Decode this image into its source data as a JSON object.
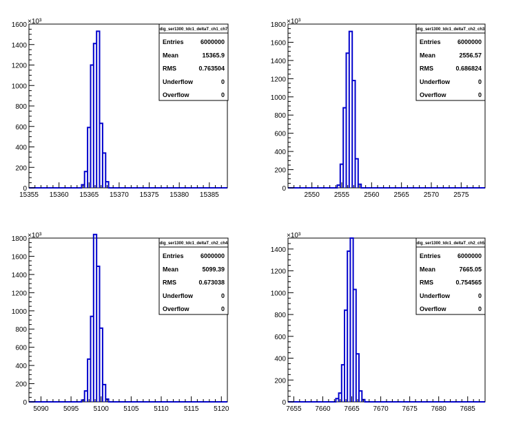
{
  "chart_data": [
    {
      "type": "histogram",
      "title": "dig_ser1300_tdc1_deltaT_ch1_ch7",
      "xlim": [
        15355,
        15388
      ],
      "ylim": [
        0,
        1600
      ],
      "y_multiplier": "×10³",
      "xticks": [
        15355,
        15360,
        15365,
        15370,
        15375,
        15380,
        15385
      ],
      "yticks": [
        0,
        200,
        400,
        600,
        800,
        1000,
        1200,
        1400,
        1600
      ],
      "bin_width": 0.5,
      "bins": [
        {
          "x": 15364.0,
          "y": 30
        },
        {
          "x": 15364.5,
          "y": 160
        },
        {
          "x": 15365.0,
          "y": 590
        },
        {
          "x": 15365.5,
          "y": 1200
        },
        {
          "x": 15366.0,
          "y": 1410
        },
        {
          "x": 15366.5,
          "y": 1530
        },
        {
          "x": 15367.0,
          "y": 630
        },
        {
          "x": 15367.5,
          "y": 340
        },
        {
          "x": 15368.0,
          "y": 60
        }
      ],
      "stats": [
        {
          "label": "Entries",
          "value": "6000000"
        },
        {
          "label": "Mean",
          "value": "15365.9"
        },
        {
          "label": "RMS",
          "value": "0.763504"
        },
        {
          "label": "Underflow",
          "value": "0"
        },
        {
          "label": "Overflow",
          "value": "0"
        }
      ]
    },
    {
      "type": "histogram",
      "title": "dig_ser1300_tdc1_deltaT_ch2_ch3",
      "xlim": [
        2546,
        2579
      ],
      "ylim": [
        0,
        1800
      ],
      "y_multiplier": "×10³",
      "xticks": [
        2550,
        2555,
        2560,
        2565,
        2570,
        2575
      ],
      "yticks": [
        0,
        200,
        400,
        600,
        800,
        1000,
        1200,
        1400,
        1600,
        1800
      ],
      "bin_width": 0.5,
      "bins": [
        {
          "x": 2554.5,
          "y": 30
        },
        {
          "x": 2555.0,
          "y": 260
        },
        {
          "x": 2555.5,
          "y": 880
        },
        {
          "x": 2556.0,
          "y": 1480
        },
        {
          "x": 2556.5,
          "y": 1720
        },
        {
          "x": 2557.0,
          "y": 1180
        },
        {
          "x": 2557.5,
          "y": 320
        },
        {
          "x": 2558.0,
          "y": 40
        }
      ],
      "stats": [
        {
          "label": "Entries",
          "value": "6000000"
        },
        {
          "label": "Mean",
          "value": "2556.57"
        },
        {
          "label": "RMS",
          "value": "0.686824"
        },
        {
          "label": "Underflow",
          "value": "0"
        },
        {
          "label": "Overflow",
          "value": "0"
        }
      ]
    },
    {
      "type": "histogram",
      "title": "dig_ser1300_tdc1_deltaT_ch2_ch4",
      "xlim": [
        5088,
        5121
      ],
      "ylim": [
        0,
        1800
      ],
      "y_multiplier": "×10³",
      "xticks": [
        5090,
        5095,
        5100,
        5105,
        5110,
        5115,
        5120
      ],
      "yticks": [
        0,
        200,
        400,
        600,
        800,
        1000,
        1200,
        1400,
        1600,
        1800
      ],
      "bin_width": 0.5,
      "bins": [
        {
          "x": 5097.0,
          "y": 20
        },
        {
          "x": 5097.5,
          "y": 120
        },
        {
          "x": 5098.0,
          "y": 470
        },
        {
          "x": 5098.5,
          "y": 940
        },
        {
          "x": 5099.0,
          "y": 1840
        },
        {
          "x": 5099.5,
          "y": 1490
        },
        {
          "x": 5100.0,
          "y": 810
        },
        {
          "x": 5100.5,
          "y": 190
        },
        {
          "x": 5101.0,
          "y": 30
        }
      ],
      "stats": [
        {
          "label": "Entries",
          "value": "6000000"
        },
        {
          "label": "Mean",
          "value": "5099.39"
        },
        {
          "label": "RMS",
          "value": "0.673038"
        },
        {
          "label": "Underflow",
          "value": "0"
        },
        {
          "label": "Overflow",
          "value": "0"
        }
      ]
    },
    {
      "type": "histogram",
      "title": "dig_ser1300_tdc1_deltaT_ch2_ch5",
      "xlim": [
        7654,
        7688
      ],
      "ylim": [
        0,
        1500
      ],
      "y_multiplier": "×10³",
      "xticks": [
        7655,
        7660,
        7665,
        7670,
        7675,
        7680,
        7685
      ],
      "yticks": [
        0,
        200,
        400,
        600,
        800,
        1000,
        1200,
        1400
      ],
      "bin_width": 0.5,
      "bins": [
        {
          "x": 7662.5,
          "y": 30
        },
        {
          "x": 7663.0,
          "y": 80
        },
        {
          "x": 7663.5,
          "y": 340
        },
        {
          "x": 7664.0,
          "y": 840
        },
        {
          "x": 7664.5,
          "y": 1380
        },
        {
          "x": 7665.0,
          "y": 1500
        },
        {
          "x": 7665.5,
          "y": 1030
        },
        {
          "x": 7666.0,
          "y": 440
        },
        {
          "x": 7666.5,
          "y": 100
        },
        {
          "x": 7667.0,
          "y": 20
        }
      ],
      "stats": [
        {
          "label": "Entries",
          "value": "6000000"
        },
        {
          "label": "Mean",
          "value": "7665.05"
        },
        {
          "label": "RMS",
          "value": "0.754565"
        },
        {
          "label": "Underflow",
          "value": "0"
        },
        {
          "label": "Overflow",
          "value": "0"
        }
      ]
    }
  ],
  "colors": {
    "line": "#0000cc",
    "axis": "#000000",
    "background": "#ffffff"
  }
}
